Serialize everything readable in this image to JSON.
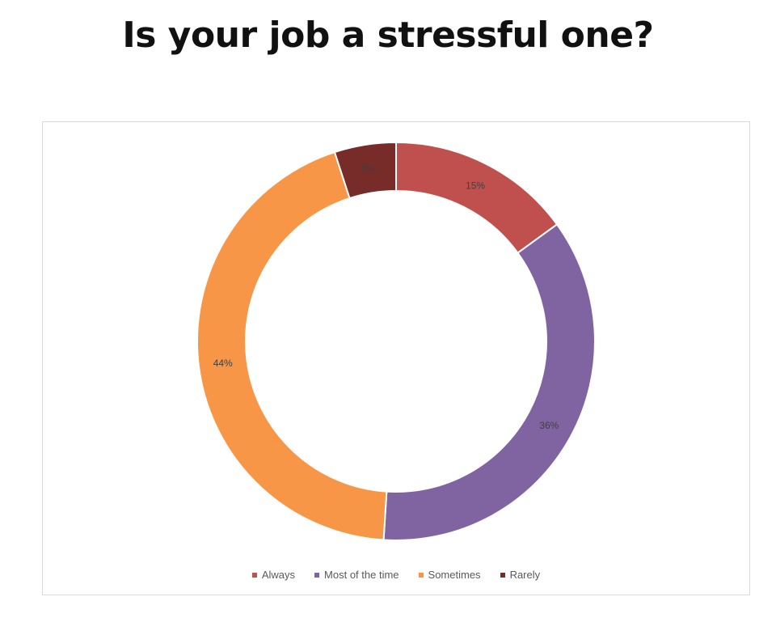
{
  "chart_data": {
    "type": "pie",
    "subtype": "donut",
    "title": "Is your job a stressful one?",
    "categories": [
      "Always",
      "Most of the time",
      "Sometimes",
      "Rarely"
    ],
    "values": [
      15,
      36,
      44,
      5
    ],
    "labels": [
      "15%",
      "36%",
      "44%",
      "5%"
    ],
    "colors": [
      "#C0504D",
      "#8064A2",
      "#F79646",
      "#772C2A"
    ],
    "legend": "bottom"
  }
}
